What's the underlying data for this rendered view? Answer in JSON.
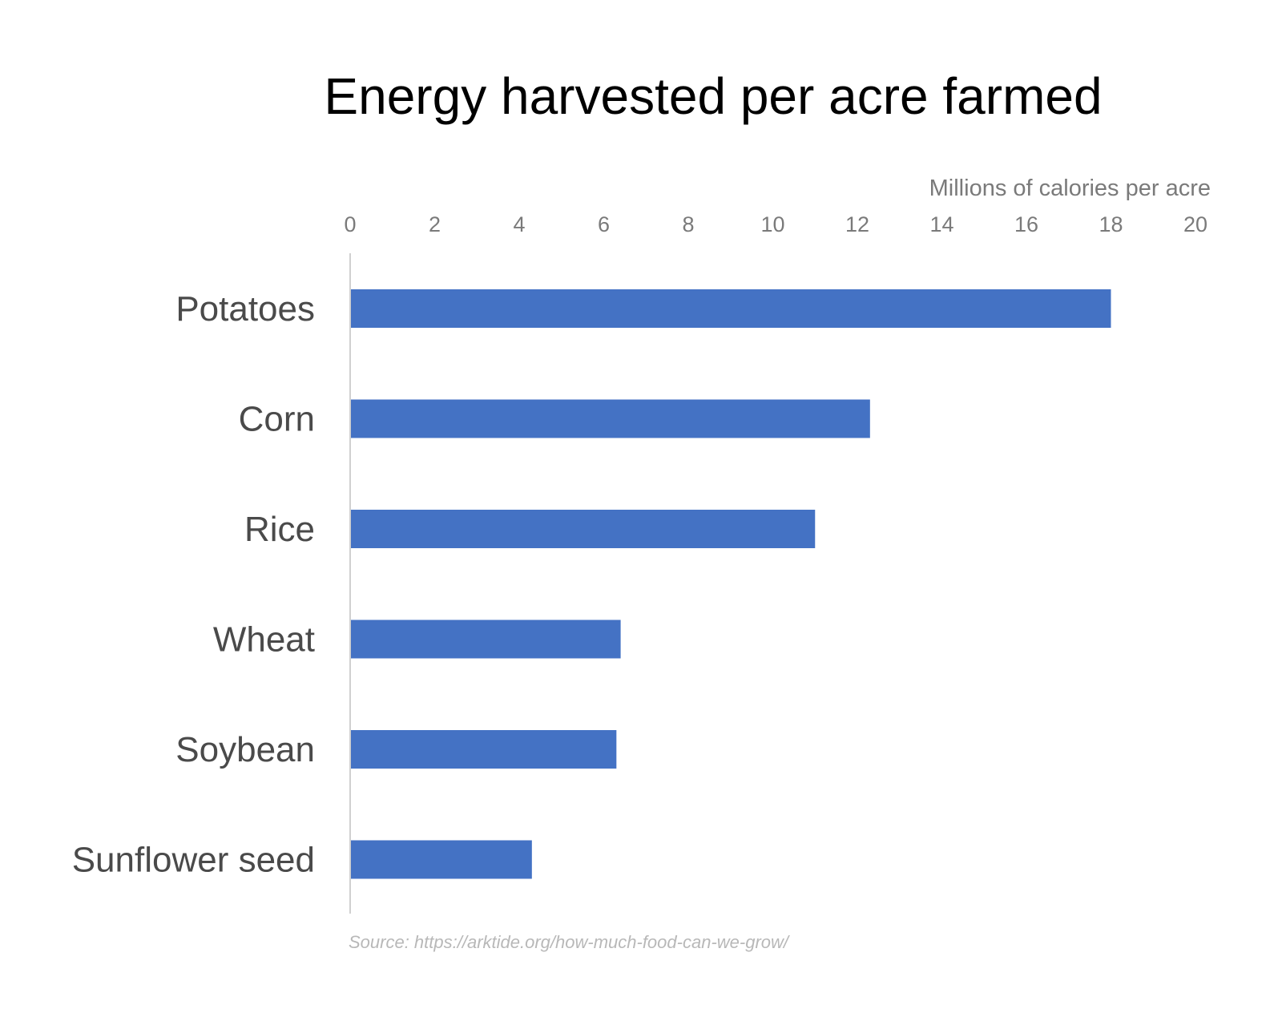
{
  "chart_data": {
    "type": "bar",
    "orientation": "horizontal",
    "title": "Energy harvested per acre farmed",
    "xlabel": "Millions of calories per acre",
    "ylabel": "",
    "categories": [
      "Potatoes",
      "Corn",
      "Rice",
      "Wheat",
      "Soybean",
      "Sunflower seed"
    ],
    "values": [
      18.0,
      12.3,
      11.0,
      6.4,
      6.3,
      4.3
    ],
    "xlim": [
      0,
      20
    ],
    "xticks": [
      "0",
      "2",
      "4",
      "6",
      "8",
      "10",
      "12",
      "14",
      "16",
      "18",
      "20"
    ],
    "x_axis_position": "top",
    "grid": false,
    "legend": "none",
    "bar_color": "#4472C4",
    "source": "Source: https://arktide.org/how-much-food-can-we-grow/"
  }
}
